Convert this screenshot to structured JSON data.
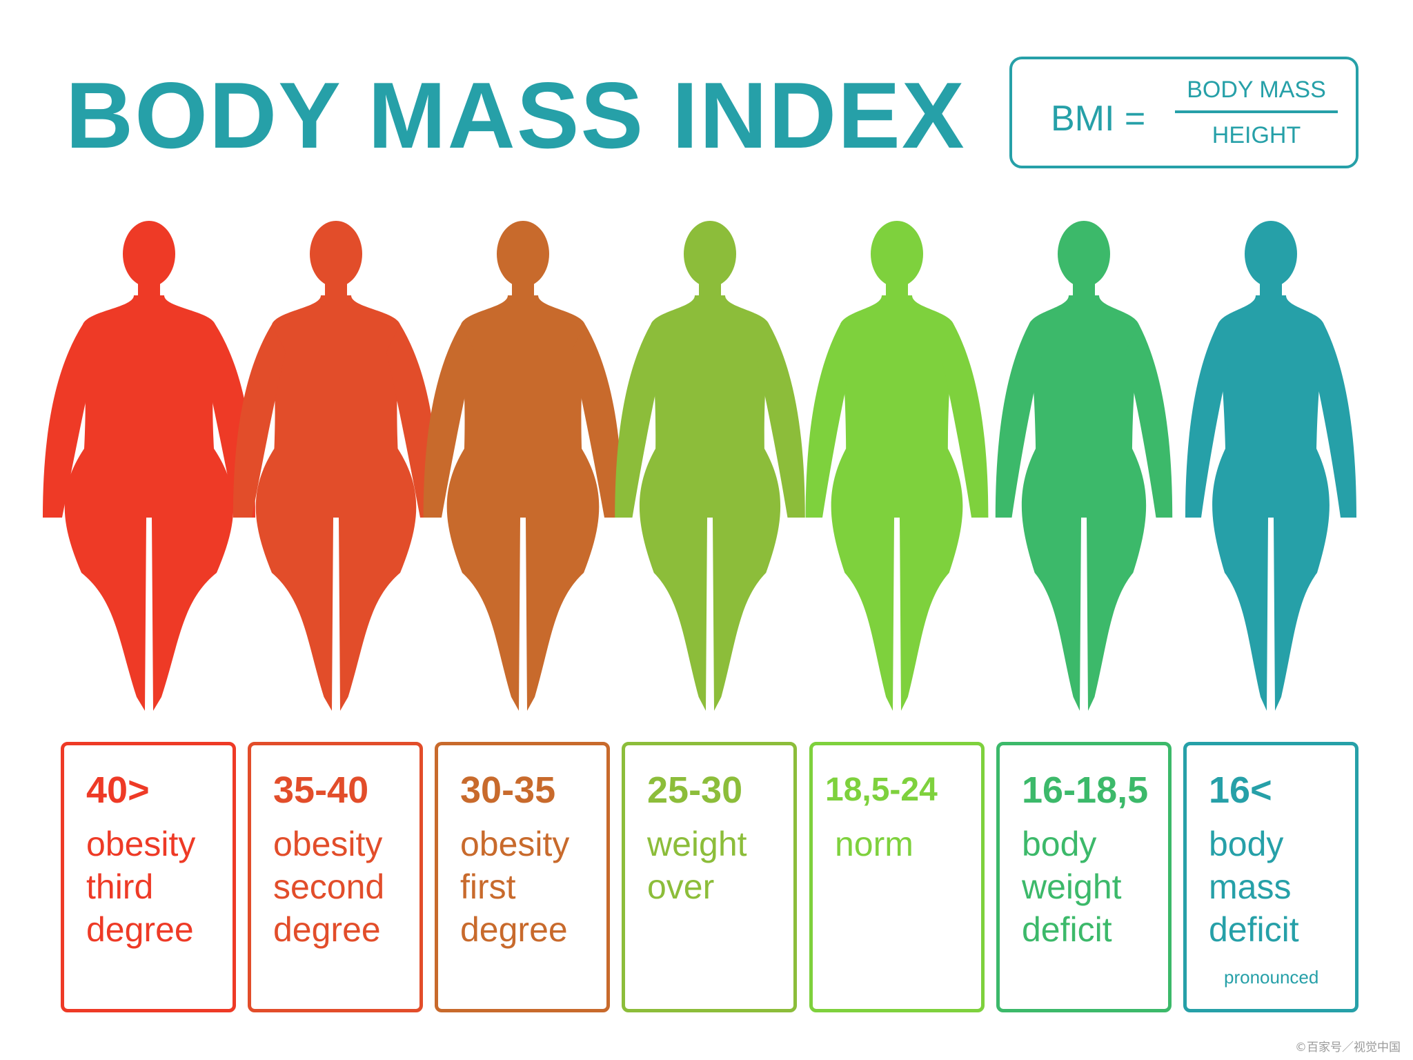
{
  "title": "BODY MASS INDEX",
  "formula": {
    "lhs": "BMI =",
    "numerator": "BODY MASS",
    "denominator": "HEIGHT"
  },
  "colors": {
    "teal": "#26a0a8",
    "categories": [
      "#ee3a26",
      "#e24d2a",
      "#c86a2c",
      "#8cbd3a",
      "#7ed13d",
      "#3cb96a",
      "#26a0a8"
    ]
  },
  "figures": [
    {
      "icon": "silhouette-obese-3-icon",
      "width": 1.0
    },
    {
      "icon": "silhouette-obese-2-icon",
      "width": 0.92
    },
    {
      "icon": "silhouette-obese-1-icon",
      "width": 0.84
    },
    {
      "icon": "silhouette-overweight-icon",
      "width": 0.73
    },
    {
      "icon": "silhouette-normal-icon",
      "width": 0.64
    },
    {
      "icon": "silhouette-deficit-icon",
      "width": 0.57
    },
    {
      "icon": "silhouette-severe-deficit-icon",
      "width": 0.5
    }
  ],
  "categories": [
    {
      "range": "40>",
      "desc": "obesity\nthird\ndegree",
      "note": ""
    },
    {
      "range": "35-40",
      "desc": "obesity\nsecond\ndegree",
      "note": ""
    },
    {
      "range": "30-35",
      "desc": "obesity\nfirst\ndegree",
      "note": ""
    },
    {
      "range": "25-30",
      "desc": "weight\nover",
      "note": ""
    },
    {
      "range": "18,5-24",
      "desc": "norm",
      "note": ""
    },
    {
      "range": "16-18,5",
      "desc": "body\nweight\ndeficit",
      "note": ""
    },
    {
      "range": "16<",
      "desc": "body\nmass\ndeficit",
      "note": "pronounced"
    }
  ],
  "watermark": "©百家号／视觉中国"
}
